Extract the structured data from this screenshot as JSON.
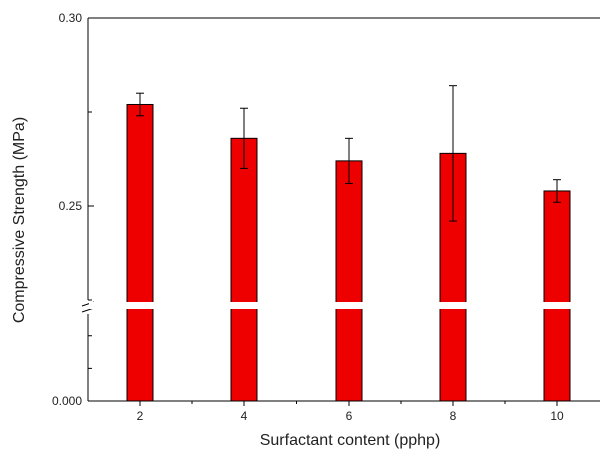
{
  "chart_data": {
    "type": "bar",
    "xlabel": "Surfactant content (pphp)",
    "ylabel": "Compressive Strength (MPa)",
    "categories": [
      "2",
      "4",
      "6",
      "8",
      "10"
    ],
    "values": [
      0.277,
      0.268,
      0.262,
      0.264,
      0.254
    ],
    "errors": [
      0.003,
      0.008,
      0.006,
      0.018,
      0.003
    ],
    "y_axis": {
      "type": "broken",
      "upper_range": [
        0.225,
        0.3
      ],
      "lower_range": [
        0.0,
        0.08
      ],
      "ticks": [
        {
          "value": 0.3,
          "label": "0.30"
        },
        {
          "value": 0.25,
          "label": "0.25"
        },
        {
          "value": 0.0,
          "label": "0.000"
        }
      ]
    },
    "bar_color": "#ee0000",
    "grid": false,
    "legend": "none"
  }
}
